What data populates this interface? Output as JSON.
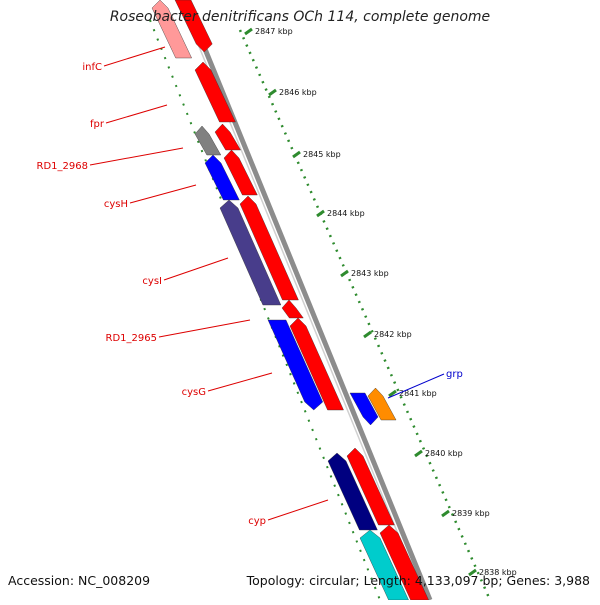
{
  "title": "Roseobacter denitrificans OCh 114, complete genome",
  "footer": {
    "accession": "Accession: NC_008209",
    "topology": "Topology: circular; Length: 4,133,097 bp; Genes: 3,988"
  },
  "colors": {
    "backbone": "#8c8c8c",
    "ruler": "#2e8b2e",
    "label_red": "#dd0000",
    "label_blue": "#0000cc",
    "gene_red": "#ff0000",
    "gene_blue": "#0000ff",
    "gene_navy": "#000080",
    "gene_slate": "#483d8b",
    "gene_gray": "#808080",
    "gene_cyan": "#00cccc",
    "gene_orange": "#ff8c00",
    "gene_pink": "#ff9999"
  },
  "ruler_ticks": [
    "2847 kbp",
    "2846 kbp",
    "2845 kbp",
    "2844 kbp",
    "2843 kbp",
    "2842 kbp",
    "2841 kbp",
    "2840 kbp",
    "2839 kbp",
    "2838 kbp"
  ],
  "gene_labels": [
    "infC",
    "fpr",
    "RD1_2968",
    "cysH",
    "cysI",
    "RD1_2965",
    "cysG",
    "cyp",
    "grp"
  ]
}
